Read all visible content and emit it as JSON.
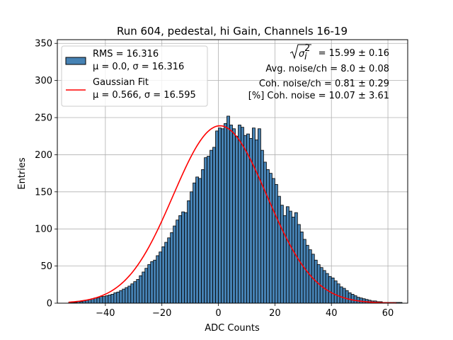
{
  "chart_data": {
    "type": "bar",
    "title": "Run 604, pedestal, hi Gain, Channels 16-19",
    "xlabel": "ADC Counts",
    "ylabel": "Entries",
    "xlim": [
      -57,
      67
    ],
    "ylim": [
      0,
      355
    ],
    "xticks": [
      -40,
      -20,
      0,
      20,
      40,
      60
    ],
    "yticks": [
      0,
      50,
      100,
      150,
      200,
      250,
      300,
      350
    ],
    "grid": true,
    "legend_position": "top-left",
    "bin_width": 1,
    "bins_start": -53,
    "series": [
      {
        "name": "RMS = 16.316",
        "name_line2": "μ = 0.0, σ = 16.316",
        "kind": "histogram",
        "color": "#4682b4",
        "values": [
          1,
          1,
          1,
          2,
          2,
          3,
          4,
          5,
          6,
          7,
          7,
          9,
          9,
          10,
          11,
          12,
          14,
          15,
          17,
          19,
          21,
          23,
          26,
          29,
          32,
          37,
          42,
          47,
          52,
          56,
          58,
          64,
          69,
          76,
          82,
          88,
          95,
          104,
          112,
          118,
          123,
          122,
          138,
          150,
          162,
          170,
          168,
          180,
          196,
          198,
          206,
          210,
          232,
          236,
          235,
          242,
          252,
          240,
          235,
          225,
          240,
          237,
          226,
          228,
          222,
          236,
          220,
          235,
          206,
          190,
          180,
          175,
          168,
          160,
          144,
          132,
          118,
          130,
          124,
          116,
          122,
          106,
          96,
          86,
          78,
          72,
          66,
          58,
          52,
          48,
          44,
          40,
          36,
          34,
          30,
          26,
          22,
          20,
          17,
          14,
          12,
          10,
          8,
          7,
          6,
          5,
          4,
          3,
          3,
          2,
          2,
          1,
          1,
          1,
          1,
          1,
          1,
          1
        ]
      },
      {
        "name": "Gaussian Fit",
        "name_line2": "μ = 0.566, σ = 16.595",
        "kind": "curve",
        "color": "#ff0000",
        "mu": 0.566,
        "sigma": 16.595,
        "amplitude": 239,
        "x_range": [
          -53,
          63
        ]
      }
    ],
    "annotations": [
      {
        "prefix": "",
        "suffix": " = 15.99 ± 0.16",
        "math": "sqrt-sigma-i-squared"
      },
      {
        "text": "Avg. noise/ch = 8.0 ± 0.08"
      },
      {
        "text": "Coh. noise/ch = 0.81 ± 0.29"
      },
      {
        "text": "[%] Coh. noise = 10.07 ± 3.61"
      }
    ]
  }
}
